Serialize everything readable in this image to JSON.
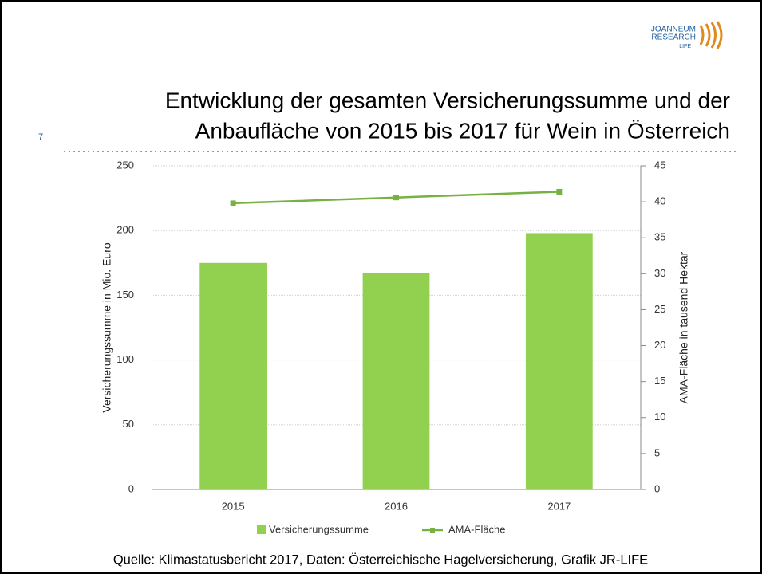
{
  "slide": {
    "page_number": "7",
    "logo": [
      "JOANNEUM",
      "RESEARCH",
      "LIFE"
    ],
    "source": "Quelle: Klimastatusbericht 2017, Daten: Österreichische Hagelversicherung, Grafik JR-LIFE"
  },
  "chart_data": {
    "type": "bar",
    "title": [
      "Entwicklung der gesamten Versicherungssumme und der",
      "Anbaufläche von 2015 bis 2017 für Wein in Österreich"
    ],
    "categories": [
      "2015",
      "2016",
      "2017"
    ],
    "series": [
      {
        "name": "Versicherungssumme",
        "color": "#92d050",
        "type": "bar",
        "values": [
          175,
          167,
          198
        ]
      },
      {
        "name": "AMA-Fläche",
        "color": "#77b142",
        "type": "line",
        "axis": "y2",
        "values": [
          39.8,
          40.6,
          41.4
        ]
      }
    ],
    "ylabel": "Versicherungssumme in Mio. Euro",
    "y2label": "AMA-Fläche in tausend Hektar",
    "ylim": [
      0,
      250
    ],
    "yticks": [
      0,
      50,
      100,
      150,
      200,
      250
    ],
    "y2lim": [
      0,
      45
    ],
    "y2ticks": [
      0,
      5,
      10,
      15,
      20,
      25,
      30,
      35,
      40,
      45
    ],
    "grid": true,
    "legend": "bottom"
  }
}
